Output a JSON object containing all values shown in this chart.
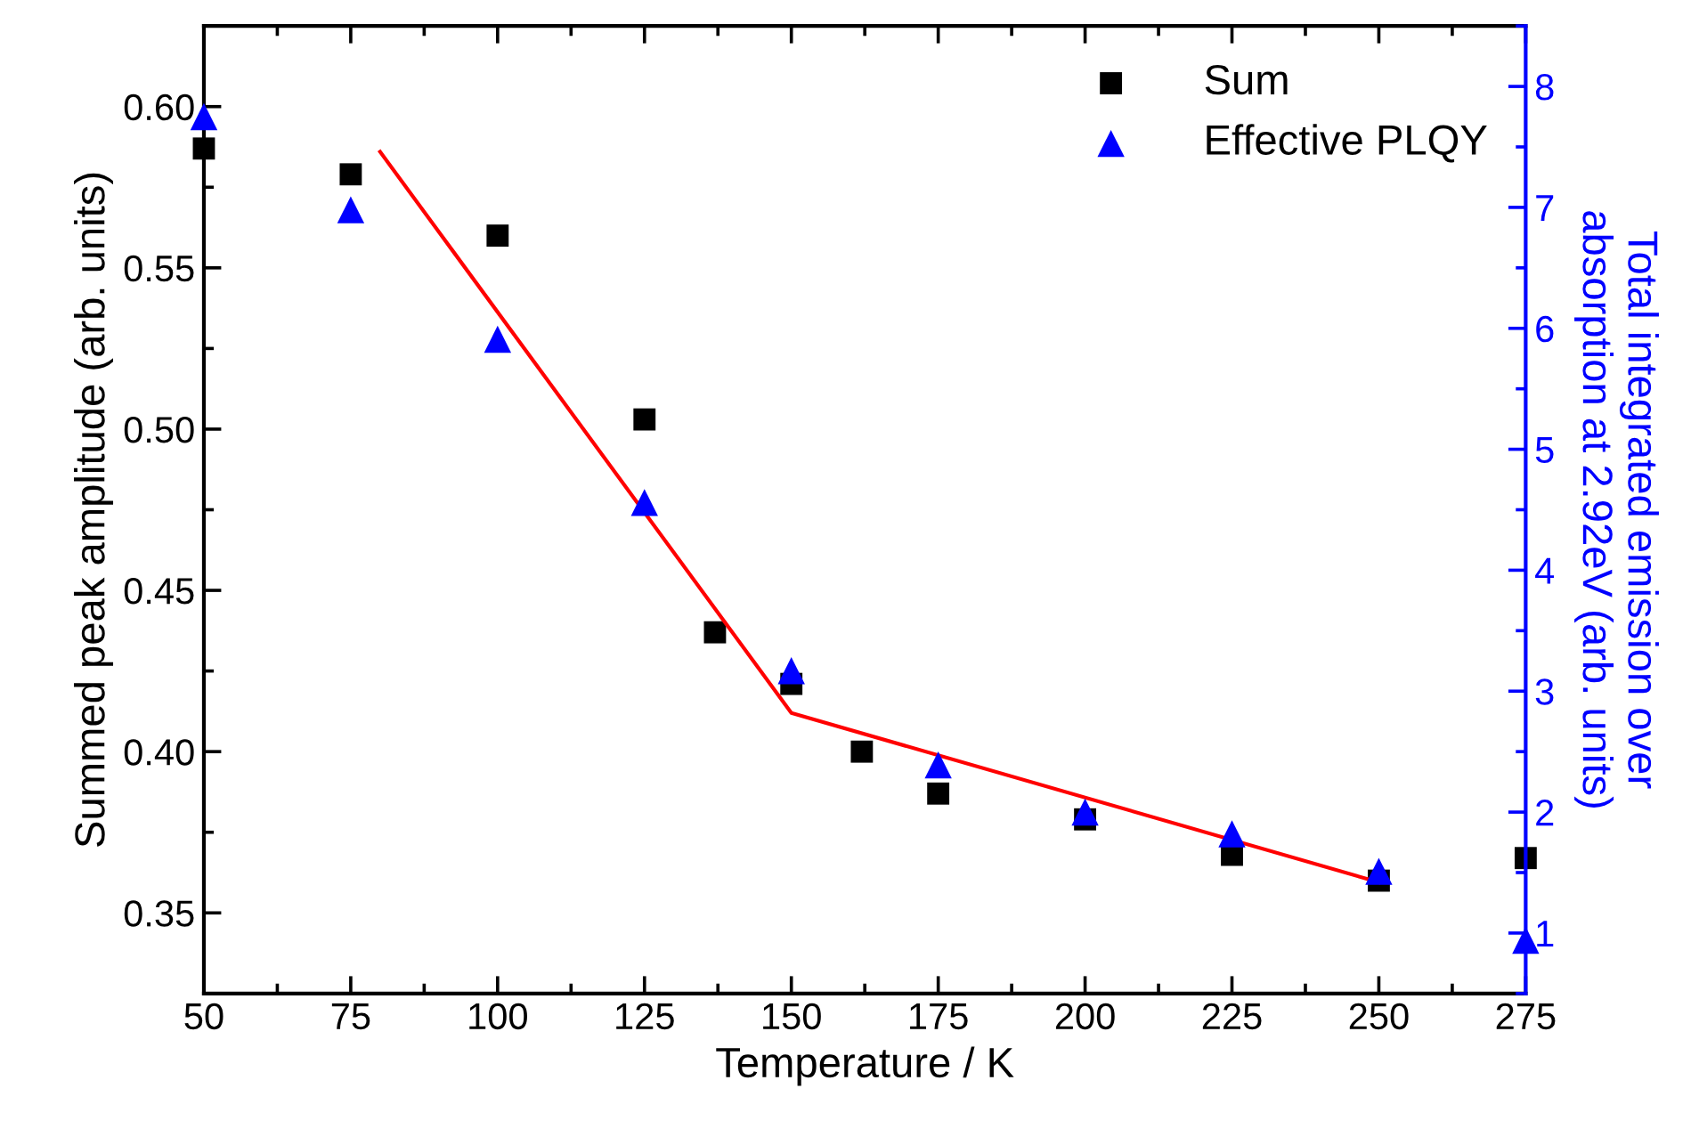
{
  "chart_data": {
    "type": "scatter",
    "xlabel": "Temperature / K",
    "ylabel": "Summed peak amplitude (arb. units)",
    "y2label": "Total integrated emission over\nabsorption at 2.92eV (arb. units)",
    "xlim": [
      50,
      275
    ],
    "xticks": [
      50,
      75,
      100,
      125,
      150,
      175,
      200,
      225,
      250,
      275
    ],
    "ylim": [
      0.325,
      0.625
    ],
    "yticks": [
      {
        "value": 0.35,
        "label": "0.35"
      },
      {
        "value": 0.4,
        "label": "0.40"
      },
      {
        "value": 0.45,
        "label": "0.45"
      },
      {
        "value": 0.5,
        "label": "0.50"
      },
      {
        "value": 0.55,
        "label": "0.55"
      },
      {
        "value": 0.6,
        "label": "0.60"
      }
    ],
    "y2lim": [
      0.5,
      8.5
    ],
    "y2ticks": [
      1,
      2,
      3,
      4,
      5,
      6,
      7,
      8
    ],
    "grid": false,
    "legend": "top right",
    "series": [
      {
        "name": "Sum",
        "marker": "square",
        "color": "#000000",
        "x": [
          50,
          75,
          100,
          125,
          137,
          150,
          162,
          175,
          200,
          225,
          250,
          275
        ],
        "values": [
          0.587,
          0.579,
          0.56,
          0.503,
          0.437,
          0.421,
          0.4,
          0.387,
          0.379,
          0.368,
          0.36,
          0.367
        ]
      },
      {
        "name": "Effective PLQY",
        "marker": "triangle",
        "color": "#0000ff",
        "axis": "y2",
        "x": [
          50,
          75,
          100,
          125,
          150,
          175,
          200,
          225,
          250,
          275
        ],
        "values": [
          7.75,
          6.98,
          5.91,
          4.56,
          3.17,
          2.39,
          2.0,
          1.82,
          1.51,
          0.94
        ]
      },
      {
        "type": "line",
        "color": "#ff0000",
        "line_style": "solid",
        "marker": "none",
        "x": [
          80,
          150,
          250
        ],
        "values": [
          0.586,
          0.412,
          0.3595
        ]
      }
    ]
  }
}
